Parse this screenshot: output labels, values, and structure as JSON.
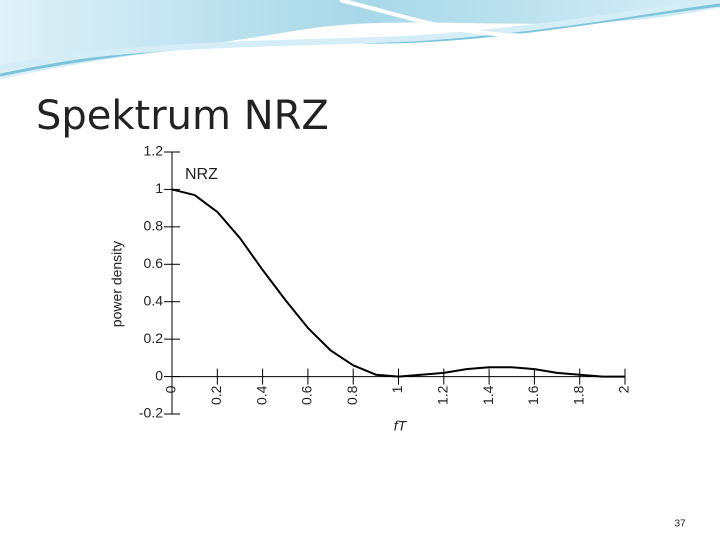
{
  "chart_data": {
    "type": "line",
    "title": "Spektrum NRZ",
    "xlabel": "fT",
    "ylabel": "power density",
    "annotation": "NRZ",
    "x": [
      0,
      0.1,
      0.2,
      0.3,
      0.4,
      0.5,
      0.6,
      0.7,
      0.8,
      0.9,
      1,
      1.1,
      1.2,
      1.3,
      1.4,
      1.5,
      1.6,
      1.7,
      1.8,
      1.9,
      2
    ],
    "series": [
      {
        "name": "NRZ",
        "color": "#000000",
        "values": [
          1,
          0.97,
          0.88,
          0.74,
          0.57,
          0.41,
          0.26,
          0.14,
          0.06,
          0.01,
          0,
          0.01,
          0.02,
          0.04,
          0.05,
          0.05,
          0.04,
          0.02,
          0.01,
          0,
          0
        ]
      }
    ],
    "xlim": [
      0,
      2
    ],
    "xticks": [
      0,
      0.2,
      0.4,
      0.6,
      0.8,
      1,
      1.2,
      1.4,
      1.6,
      1.8,
      2
    ],
    "ylim": [
      -0.2,
      1.2
    ],
    "yticks": [
      -0.2,
      0,
      0.2,
      0.4,
      0.6,
      0.8,
      1,
      1.2
    ]
  },
  "page_number": "37"
}
